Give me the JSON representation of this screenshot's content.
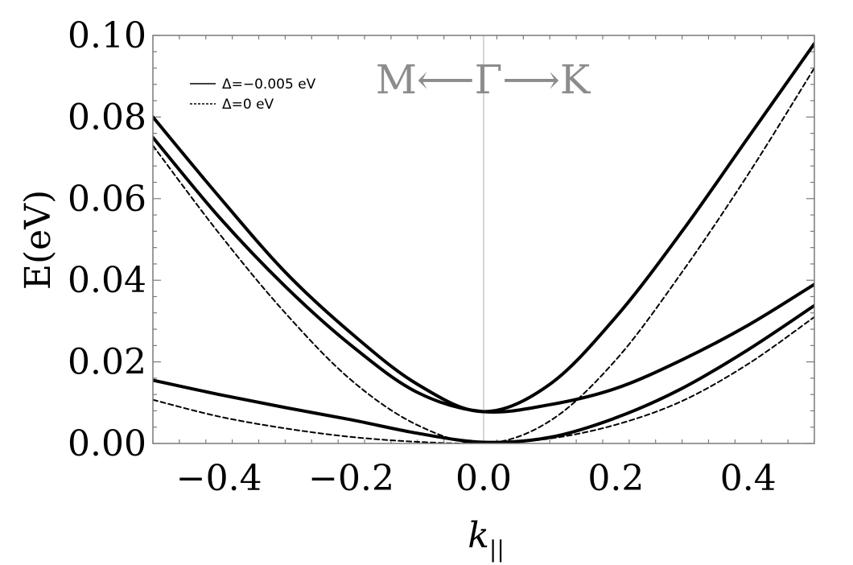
{
  "chart_data": {
    "type": "line",
    "xlabel": "k",
    "xlabel_subscript": "||",
    "ylabel": "E(eV)",
    "xlim": [
      -0.5,
      0.5
    ],
    "ylim": [
      0.0,
      0.1
    ],
    "x_ticks": [
      -0.4,
      -0.2,
      0.0,
      0.2,
      0.4
    ],
    "x_tick_labels": [
      "−0.4",
      "−0.2",
      "0.0",
      "0.2",
      "0.4"
    ],
    "y_ticks": [
      0.0,
      0.02,
      0.04,
      0.06,
      0.08,
      0.1
    ],
    "y_tick_labels": [
      "0.00",
      "0.02",
      "0.04",
      "0.06",
      "0.08",
      "0.10"
    ],
    "grid": false,
    "legend_position": "top-left",
    "annotation": "M⟵Γ⟶K",
    "legend": [
      {
        "label": "Δ=−0.005 eV",
        "style": "solid"
      },
      {
        "label": "Δ=0 eV",
        "style": "dashed"
      }
    ],
    "series": [
      {
        "style": "solid",
        "x": [
          -0.5,
          -0.4,
          -0.3,
          -0.2,
          -0.1,
          0.0,
          0.1,
          0.2,
          0.3,
          0.4,
          0.5
        ],
        "y": [
          0.08,
          0.0605,
          0.042,
          0.027,
          0.0145,
          0.0078,
          0.0145,
          0.031,
          0.052,
          0.075,
          0.098
        ]
      },
      {
        "style": "solid",
        "x": [
          -0.5,
          -0.4,
          -0.3,
          -0.2,
          -0.1,
          0.0,
          0.1,
          0.2,
          0.3,
          0.4,
          0.5
        ],
        "y": [
          0.075,
          0.0555,
          0.0385,
          0.024,
          0.0125,
          0.0078,
          0.0095,
          0.0135,
          0.0205,
          0.029,
          0.039
        ]
      },
      {
        "style": "solid",
        "x": [
          -0.5,
          -0.4,
          -0.3,
          -0.2,
          -0.1,
          0.0,
          0.1,
          0.2,
          0.3,
          0.4,
          0.5
        ],
        "y": [
          0.0155,
          0.012,
          0.0088,
          0.0058,
          0.0025,
          0.0003,
          0.0015,
          0.0063,
          0.0135,
          0.023,
          0.0338
        ]
      },
      {
        "style": "dashed",
        "x": [
          -0.5,
          -0.4,
          -0.3,
          -0.2,
          -0.1,
          0.0,
          0.1,
          0.2,
          0.3,
          0.4,
          0.5
        ],
        "y": [
          0.073,
          0.0515,
          0.032,
          0.0155,
          0.0045,
          0.0,
          0.0055,
          0.0205,
          0.042,
          0.066,
          0.092
        ]
      },
      {
        "style": "dashed",
        "x": [
          -0.5,
          -0.4,
          -0.3,
          -0.2,
          -0.1,
          0.0,
          0.1,
          0.2,
          0.3,
          0.4,
          0.5
        ],
        "y": [
          0.0107,
          0.0066,
          0.0037,
          0.0016,
          0.0004,
          0.0,
          0.0012,
          0.0046,
          0.0104,
          0.0195,
          0.031
        ]
      }
    ]
  }
}
